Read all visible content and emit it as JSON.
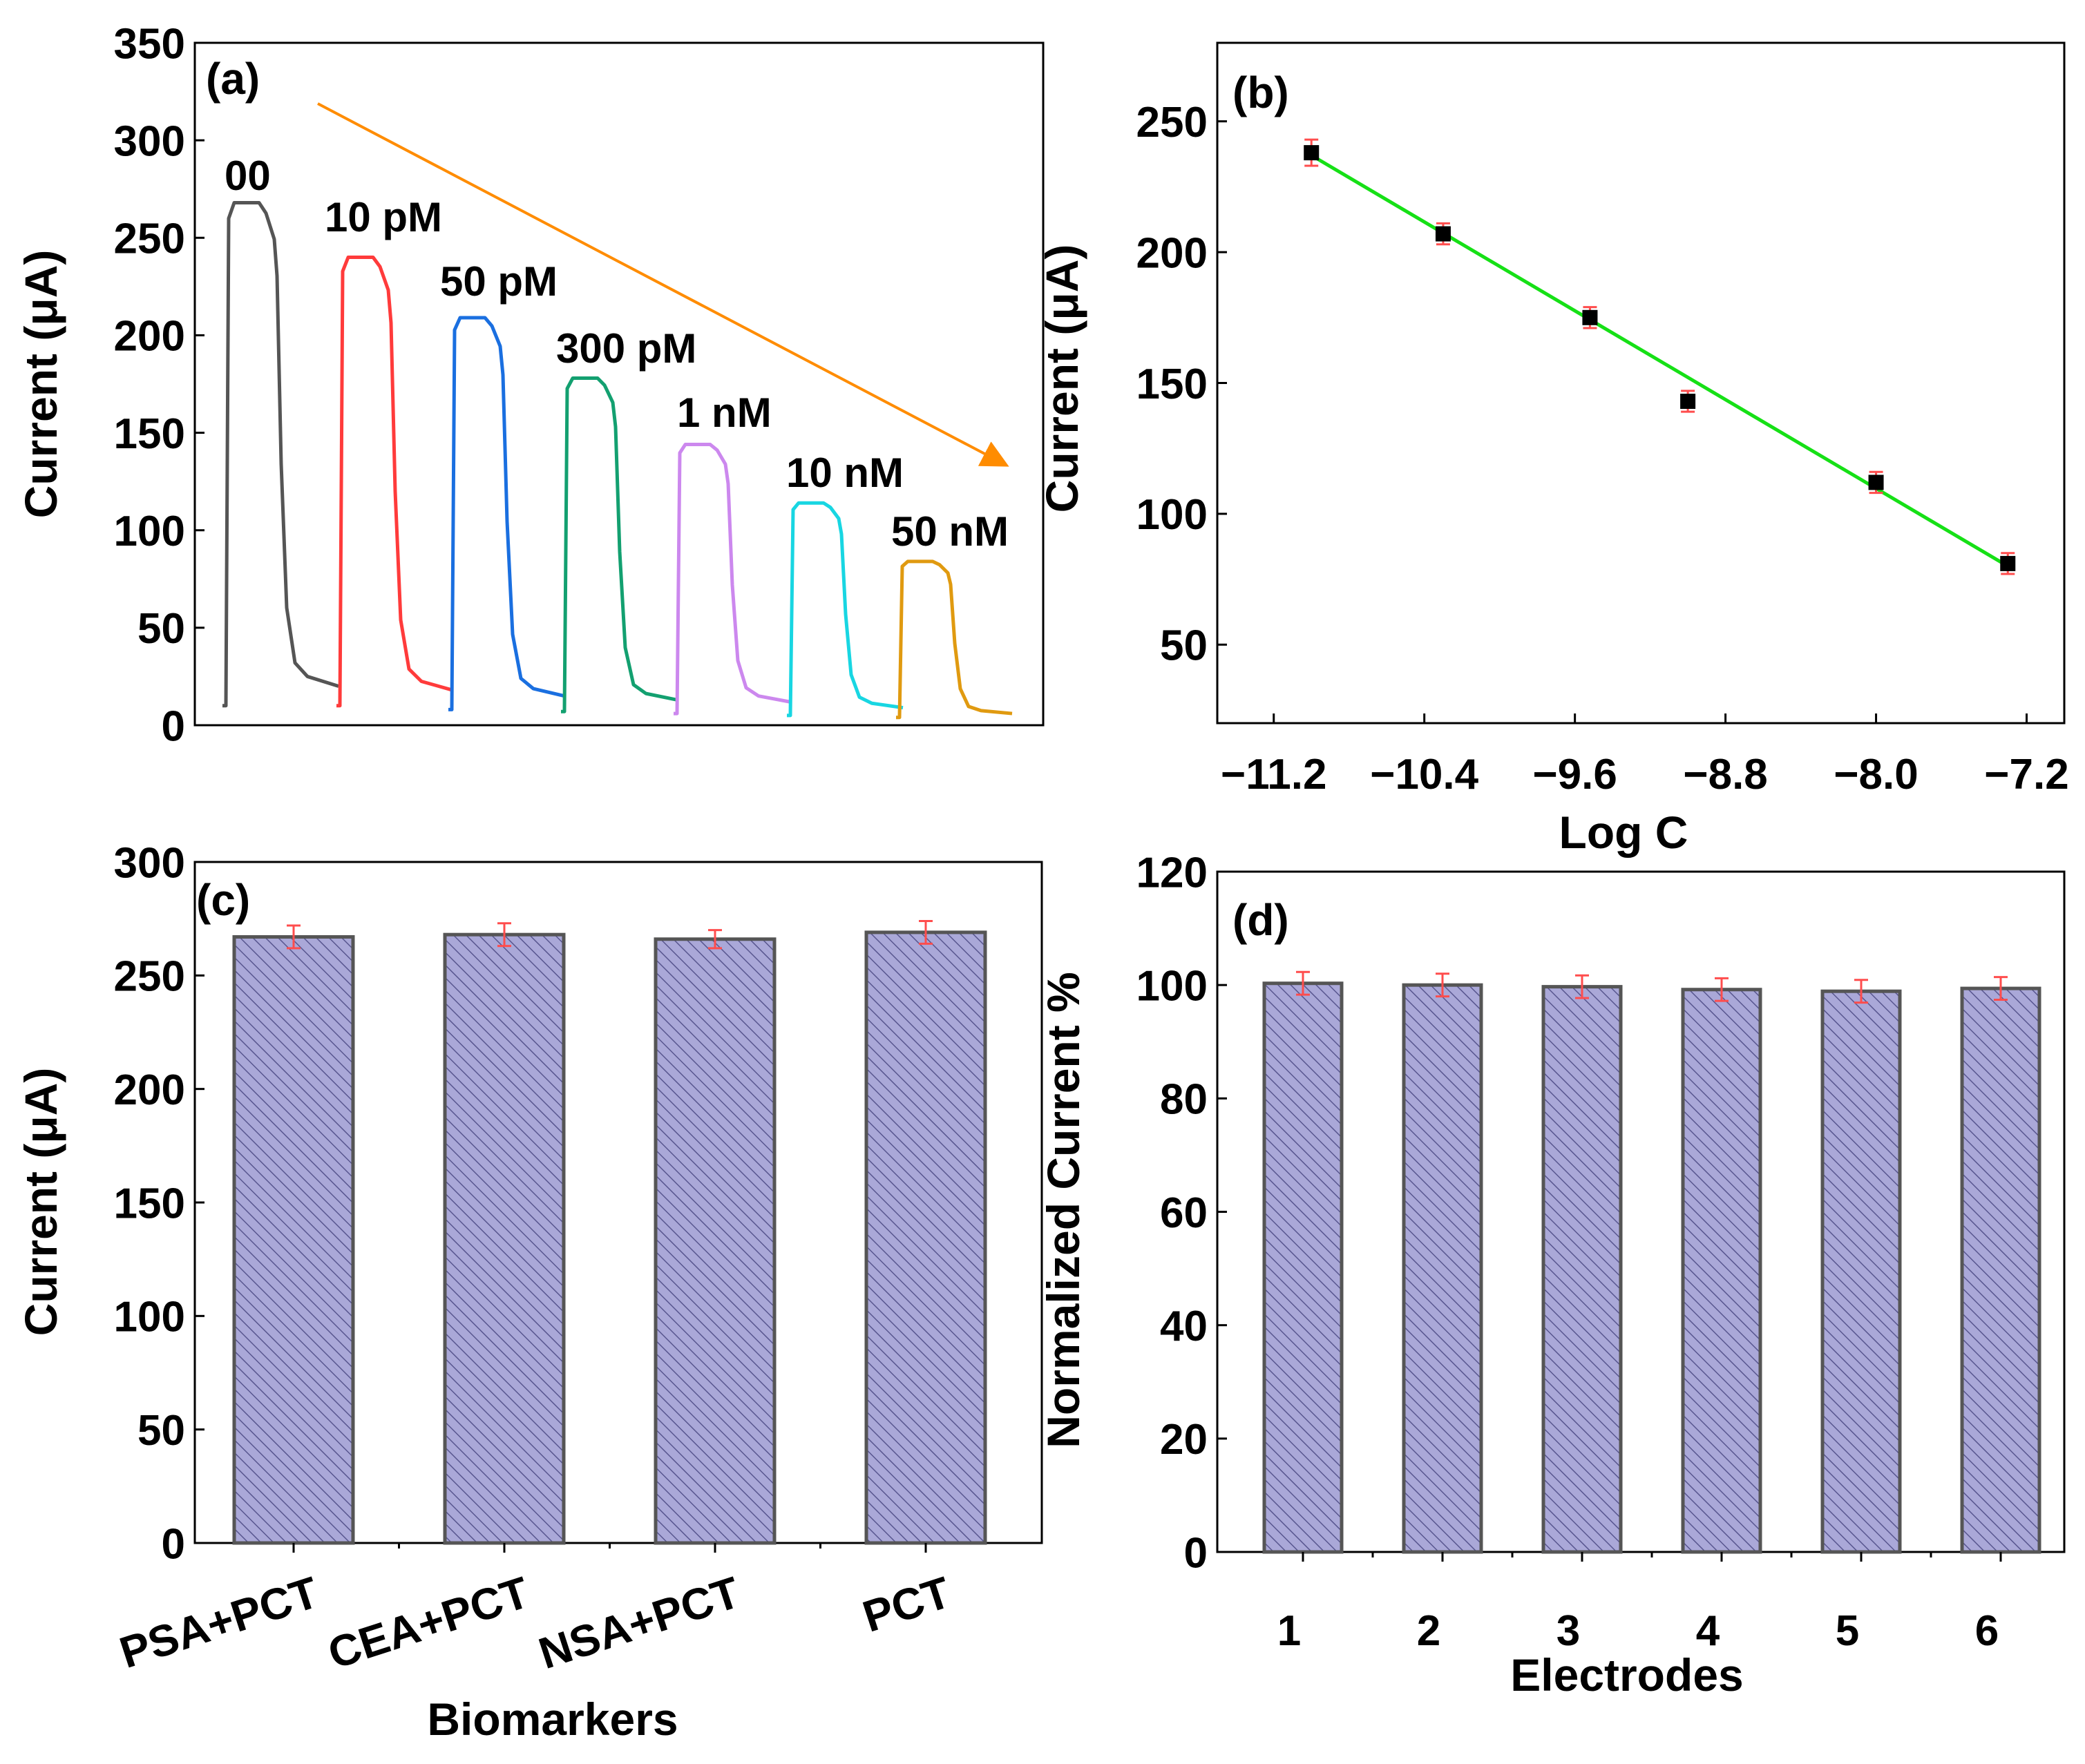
{
  "colors": {
    "bar_fill": "#aaa8d8",
    "bar_hatch": "#58568f",
    "bar_edge": "#555555",
    "error_bar": "#ff4d4d",
    "fit_line": "#16e016",
    "marker": "#000000",
    "trend_arrow": "#ff8c00"
  },
  "chart_data": [
    {
      "panel_label": "(a)",
      "type": "line",
      "title": "",
      "xlabel": "",
      "ylabel": "Current (μA)",
      "ylim": [
        0,
        350
      ],
      "yticks": [
        0,
        50,
        100,
        150,
        200,
        250,
        300,
        350
      ],
      "grid": false,
      "annotation": "orange arrow indicating decreasing current",
      "series": [
        {
          "name": "00",
          "color": "#555555",
          "baseline": 10,
          "peak": 268,
          "end": 20
        },
        {
          "name": "10 pM",
          "color": "#ff3b3b",
          "baseline": 10,
          "peak": 240,
          "end": 18
        },
        {
          "name": "50 pM",
          "color": "#1a6fe0",
          "baseline": 8,
          "peak": 209,
          "end": 15
        },
        {
          "name": "300 pM",
          "color": "#13a070",
          "baseline": 7,
          "peak": 178,
          "end": 13
        },
        {
          "name": "1 nM",
          "color": "#cc88ee",
          "baseline": 6,
          "peak": 144,
          "end": 12
        },
        {
          "name": "10 nM",
          "color": "#18d6e2",
          "baseline": 5,
          "peak": 114,
          "end": 9
        },
        {
          "name": "50 nM",
          "color": "#e09a10",
          "baseline": 4,
          "peak": 84,
          "end": 6
        }
      ]
    },
    {
      "panel_label": "(b)",
      "type": "scatter",
      "title": "",
      "xlabel": "Log C",
      "ylabel": "Current (μA)",
      "xlim": [
        -11.5,
        -7.0
      ],
      "ylim": [
        20,
        280
      ],
      "xticks": [
        -11.2,
        -10.4,
        -9.6,
        -8.8,
        -8.0,
        -7.2
      ],
      "xtick_labels": [
        "-11.2",
        "-10.4",
        "-9.6",
        "-8.8",
        "-8.0",
        "-7.2"
      ],
      "yticks": [
        50,
        100,
        150,
        200,
        250
      ],
      "grid": false,
      "points": [
        {
          "x": -11.0,
          "y": 238,
          "err": 5
        },
        {
          "x": -10.3,
          "y": 207,
          "err": 4
        },
        {
          "x": -9.52,
          "y": 175,
          "err": 4
        },
        {
          "x": -9.0,
          "y": 143,
          "err": 4
        },
        {
          "x": -8.0,
          "y": 112,
          "err": 4
        },
        {
          "x": -7.3,
          "y": 81,
          "err": 4
        }
      ],
      "fit": {
        "x": [
          -11.0,
          -7.3
        ],
        "y": [
          237,
          80
        ]
      }
    },
    {
      "panel_label": "(c)",
      "type": "bar",
      "title": "",
      "xlabel": "Biomarkers",
      "ylabel": "Current (μA)",
      "ylim": [
        0,
        300
      ],
      "yticks": [
        0,
        50,
        100,
        150,
        200,
        250,
        300
      ],
      "grid": false,
      "categories": [
        "PSA+PCT",
        "CEA+PCT",
        "NSA+PCT",
        "PCT"
      ],
      "values": [
        267,
        268,
        266,
        269
      ],
      "errors": [
        5,
        5,
        4,
        5
      ]
    },
    {
      "panel_label": "(d)",
      "type": "bar",
      "title": "",
      "xlabel": "Electrodes",
      "ylabel": "Normalized Current %",
      "ylim": [
        0,
        120
      ],
      "yticks": [
        0,
        20,
        40,
        60,
        80,
        100,
        120
      ],
      "grid": false,
      "categories": [
        "1",
        "2",
        "3",
        "4",
        "5",
        "6"
      ],
      "values": [
        100.3,
        100.0,
        99.7,
        99.2,
        98.9,
        99.4
      ],
      "errors": [
        2,
        2,
        2,
        2,
        2,
        2
      ]
    }
  ]
}
